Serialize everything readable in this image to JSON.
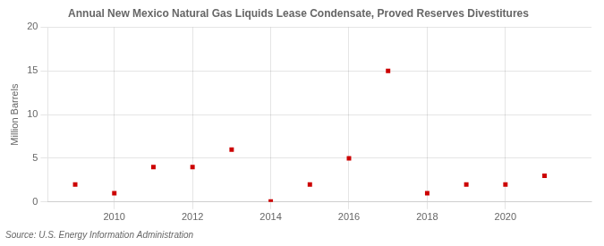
{
  "chart_data": {
    "type": "scatter",
    "title": "Annual New Mexico Natural Gas Liquids Lease Condensate, Proved Reserves Divestitures",
    "ylabel": "Million Barrels",
    "source": "Source: U.S. Energy Information Administration",
    "x": [
      2009,
      2010,
      2011,
      2012,
      2013,
      2014,
      2015,
      2016,
      2017,
      2018,
      2019,
      2020,
      2021
    ],
    "values": [
      2.0,
      1.0,
      4.0,
      4.0,
      6.0,
      0.05,
      2.0,
      5.0,
      15.0,
      1.0,
      2.0,
      2.0,
      3.0
    ],
    "color": "#cc0000",
    "marker": "square",
    "xlim": [
      2008.3,
      2022.2
    ],
    "xticks": [
      2010,
      2012,
      2014,
      2016,
      2018,
      2020
    ],
    "ylim": [
      0,
      20
    ],
    "yticks": [
      0,
      5,
      10,
      15,
      20
    ],
    "grid": true
  }
}
